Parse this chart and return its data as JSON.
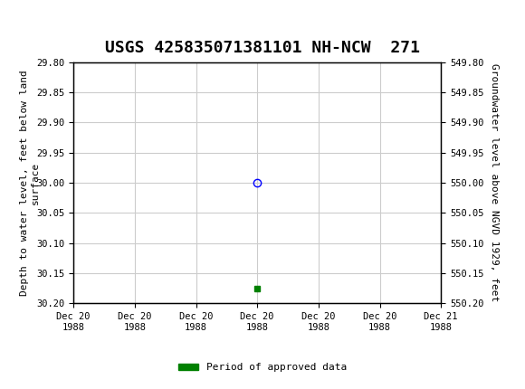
{
  "title": "USGS 425835071381101 NH-NCW  271",
  "title_fontsize": 13,
  "header_color": "#006633",
  "bg_color": "#ffffff",
  "plot_bg_color": "#ffffff",
  "grid_color": "#cccccc",
  "ylabel_left": "Depth to water level, feet below land\nsurface",
  "ylabel_right": "Groundwater level above NGVD 1929, feet",
  "ylim_left": [
    29.8,
    30.2
  ],
  "ylim_right": [
    549.8,
    550.2
  ],
  "yticks_left": [
    29.8,
    29.85,
    29.9,
    29.95,
    30.0,
    30.05,
    30.1,
    30.15,
    30.2
  ],
  "yticks_right": [
    549.8,
    549.85,
    549.9,
    549.95,
    550.0,
    550.05,
    550.1,
    550.15,
    550.2
  ],
  "xlim": [
    0,
    6
  ],
  "xtick_labels": [
    "Dec 20\n1988",
    "Dec 20\n1988",
    "Dec 20\n1988",
    "Dec 20\n1988",
    "Dec 20\n1988",
    "Dec 20\n1988",
    "Dec 21\n1988"
  ],
  "xtick_positions": [
    0,
    1,
    2,
    3,
    4,
    5,
    6
  ],
  "data_point_x": 3,
  "data_point_y": 30.0,
  "data_point_color": "blue",
  "data_point_marker": "o",
  "data_point_markersize": 6,
  "data_point_fillstyle": "none",
  "green_square_x": 3,
  "green_square_y": 30.175,
  "green_square_color": "#008000",
  "legend_label": "Period of approved data",
  "legend_color": "#008000",
  "font_family": "monospace"
}
